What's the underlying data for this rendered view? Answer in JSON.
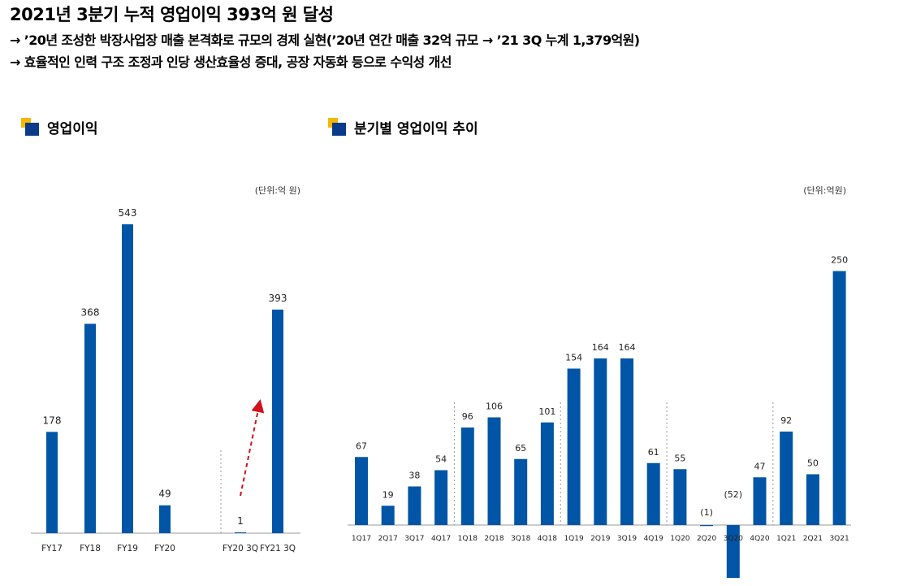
{
  "header": {
    "title": "2021년 3분기 누적 영업이익 393억 원 달성",
    "bullet1": "→ ’20년 조성한 박장사업장 매출 본격화로 규모의 경제 실현(’20년 연간 매출 32억 규모 → ’21 3Q 누계 1,379억원)",
    "bullet2": "→ 효율적인 인력 구조 조정과 인당 생산효율성 증대, 공장 자동화 등으로 수익성 개선"
  },
  "colors": {
    "bar": "#0055a6",
    "accent_yellow": "#f5b800",
    "accent_navy": "#0a3a8a",
    "arrow": "#d0121b"
  },
  "chart_data": [
    {
      "type": "bar",
      "title": "영업이익",
      "unit": "(단위:억 원)",
      "categories": [
        "FY17",
        "FY18",
        "FY19",
        "FY20",
        "FY20 3Q",
        "FY21 3Q"
      ],
      "values": [
        178,
        368,
        543,
        49,
        1,
        393
      ],
      "value_labels": [
        "178",
        "368",
        "543",
        "49",
        "1",
        "393"
      ],
      "ylim": [
        0,
        560
      ],
      "grid": false
    },
    {
      "type": "bar",
      "title": "분기별 영업이익 추이",
      "unit": "(단위:억원)",
      "categories": [
        "1Q17",
        "2Q17",
        "3Q17",
        "4Q17",
        "1Q18",
        "2Q18",
        "3Q18",
        "4Q18",
        "1Q19",
        "2Q19",
        "3Q19",
        "4Q19",
        "1Q20",
        "2Q20",
        "3Q20",
        "4Q20",
        "1Q21",
        "2Q21",
        "3Q21"
      ],
      "values": [
        67,
        19,
        38,
        54,
        96,
        106,
        65,
        101,
        154,
        164,
        164,
        61,
        55,
        -1,
        -52,
        47,
        92,
        50,
        250
      ],
      "value_labels": [
        "67",
        "19",
        "38",
        "54",
        "96",
        "106",
        "65",
        "101",
        "154",
        "164",
        "164",
        "61",
        "55",
        "(1)",
        "(52)",
        "47",
        "92",
        "50",
        "250"
      ],
      "ylim": [
        -52,
        250
      ],
      "grid": false
    }
  ]
}
